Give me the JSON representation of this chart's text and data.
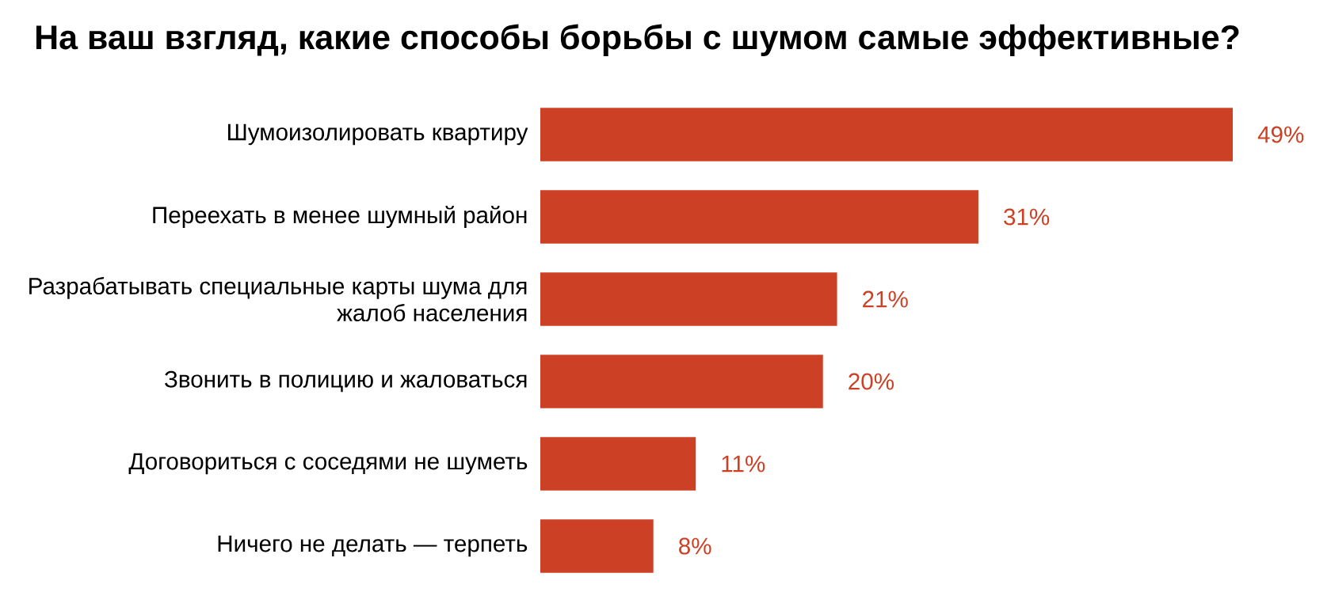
{
  "chart_data": {
    "type": "bar",
    "orientation": "horizontal",
    "title": "На ваш взгляд, какие способы борьбы с шумом самые эффективные?",
    "categories": [
      "Шумоизолировать квартиру",
      "Переехать в менее шумный район",
      "Разрабатывать специальные карты шума для жалоб населения",
      "Звонить в полицию и жаловаться",
      "Договориться с соседями не шуметь",
      "Ничего не делать — терпеть"
    ],
    "values": [
      49,
      31,
      21,
      20,
      11,
      8
    ],
    "value_labels": [
      "49%",
      "31%",
      "21%",
      "20%",
      "11%",
      "8%"
    ],
    "color": "#cc4125"
  }
}
